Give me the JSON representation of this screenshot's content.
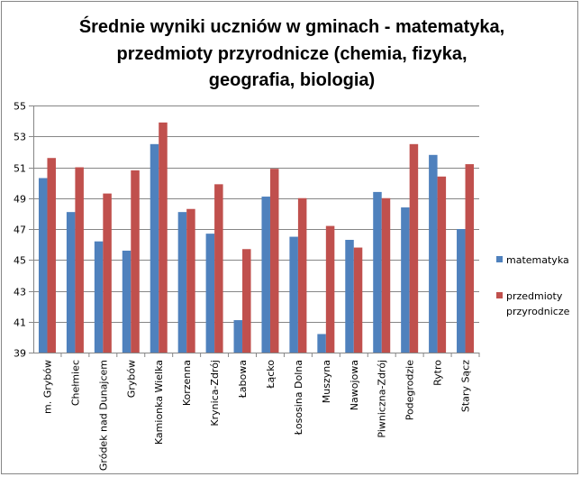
{
  "chart_data": {
    "type": "bar",
    "title_lines": [
      "Średnie wyniki uczniów w gminach - matematyka,",
      "przedmioty przyrodnicze (chemia, fizyka,",
      "geografia, biologia)"
    ],
    "categories": [
      "m. Grybów",
      "Chełmiec",
      "Gródek nad Dunajcem",
      "Grybów",
      "Kamionka Wielka",
      "Korzenna",
      "Krynica-Zdrój",
      "Łabowa",
      "Łącko",
      "Łososina Dolna",
      "Muszyna",
      "Nawojowa",
      "Piwniczna-Zdrój",
      "Podegrodzie",
      "Rytro",
      "Stary Sącz"
    ],
    "series": [
      {
        "name": "matematyka",
        "color": "#4f81bd",
        "values": [
          50.3,
          48.1,
          46.2,
          45.6,
          52.5,
          48.1,
          46.7,
          41.1,
          49.1,
          46.5,
          40.2,
          46.3,
          49.4,
          48.4,
          51.8,
          47.0
        ]
      },
      {
        "name": "przedmioty przyrodnicze",
        "legend_lines": [
          "przedmioty",
          "przyrodnicze"
        ],
        "color": "#c0504d",
        "values": [
          51.6,
          51.0,
          49.3,
          50.8,
          53.9,
          48.3,
          49.9,
          45.7,
          50.9,
          49.0,
          47.2,
          45.8,
          49.0,
          52.5,
          50.4,
          51.2
        ]
      }
    ],
    "ylim": [
      39,
      55
    ],
    "yticks": [
      39,
      41,
      43,
      45,
      47,
      49,
      51,
      53,
      55
    ],
    "grid": true,
    "legend_position": "right",
    "xlabel": "",
    "ylabel": ""
  }
}
